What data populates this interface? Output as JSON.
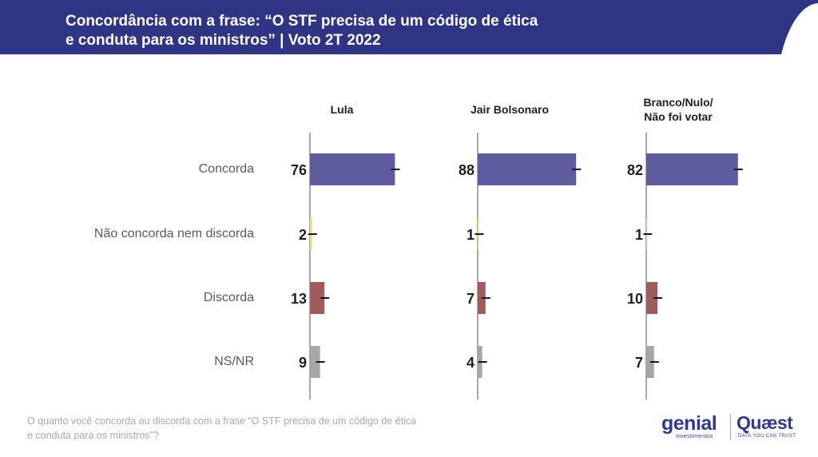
{
  "header": {
    "title_line1": "Concordância com a frase: “O STF precisa de um código de ética",
    "title_line2": "e conduta para os ministros” | Voto 2T 2022",
    "bg_color": "#2f3582"
  },
  "chart_data": {
    "type": "bar",
    "orientation": "horizontal",
    "categories": [
      "Concorda",
      "Não concorda nem discorda",
      "Discorda",
      "NS/NR"
    ],
    "category_colors": [
      "#5e5b9e",
      "#e8d9a0",
      "#a05b5b",
      "#a6a6a6"
    ],
    "panels": [
      {
        "name": "Lula",
        "values": [
          76,
          2,
          13,
          9
        ]
      },
      {
        "name": "Jair Bolsonaro",
        "values": [
          88,
          1,
          7,
          4
        ]
      },
      {
        "name": "Branco/Nulo/Não foi votar",
        "name_lines": [
          "Branco/Nulo/",
          "Não foi votar"
        ],
        "values": [
          82,
          1,
          10,
          7
        ]
      }
    ],
    "xlim": [
      0,
      100
    ],
    "error_bars": true,
    "grid": false
  },
  "footnote": {
    "line1": "O quanto você concorda ou discorda com a frase “O STF precisa de um código de ética",
    "line2": "e conduta para os ministros”?"
  },
  "logos": {
    "genial": "genial",
    "genial_sub": "investimentos",
    "quaest": "Quæst",
    "quaest_sub": "DATA YOU CAN TRUST"
  }
}
